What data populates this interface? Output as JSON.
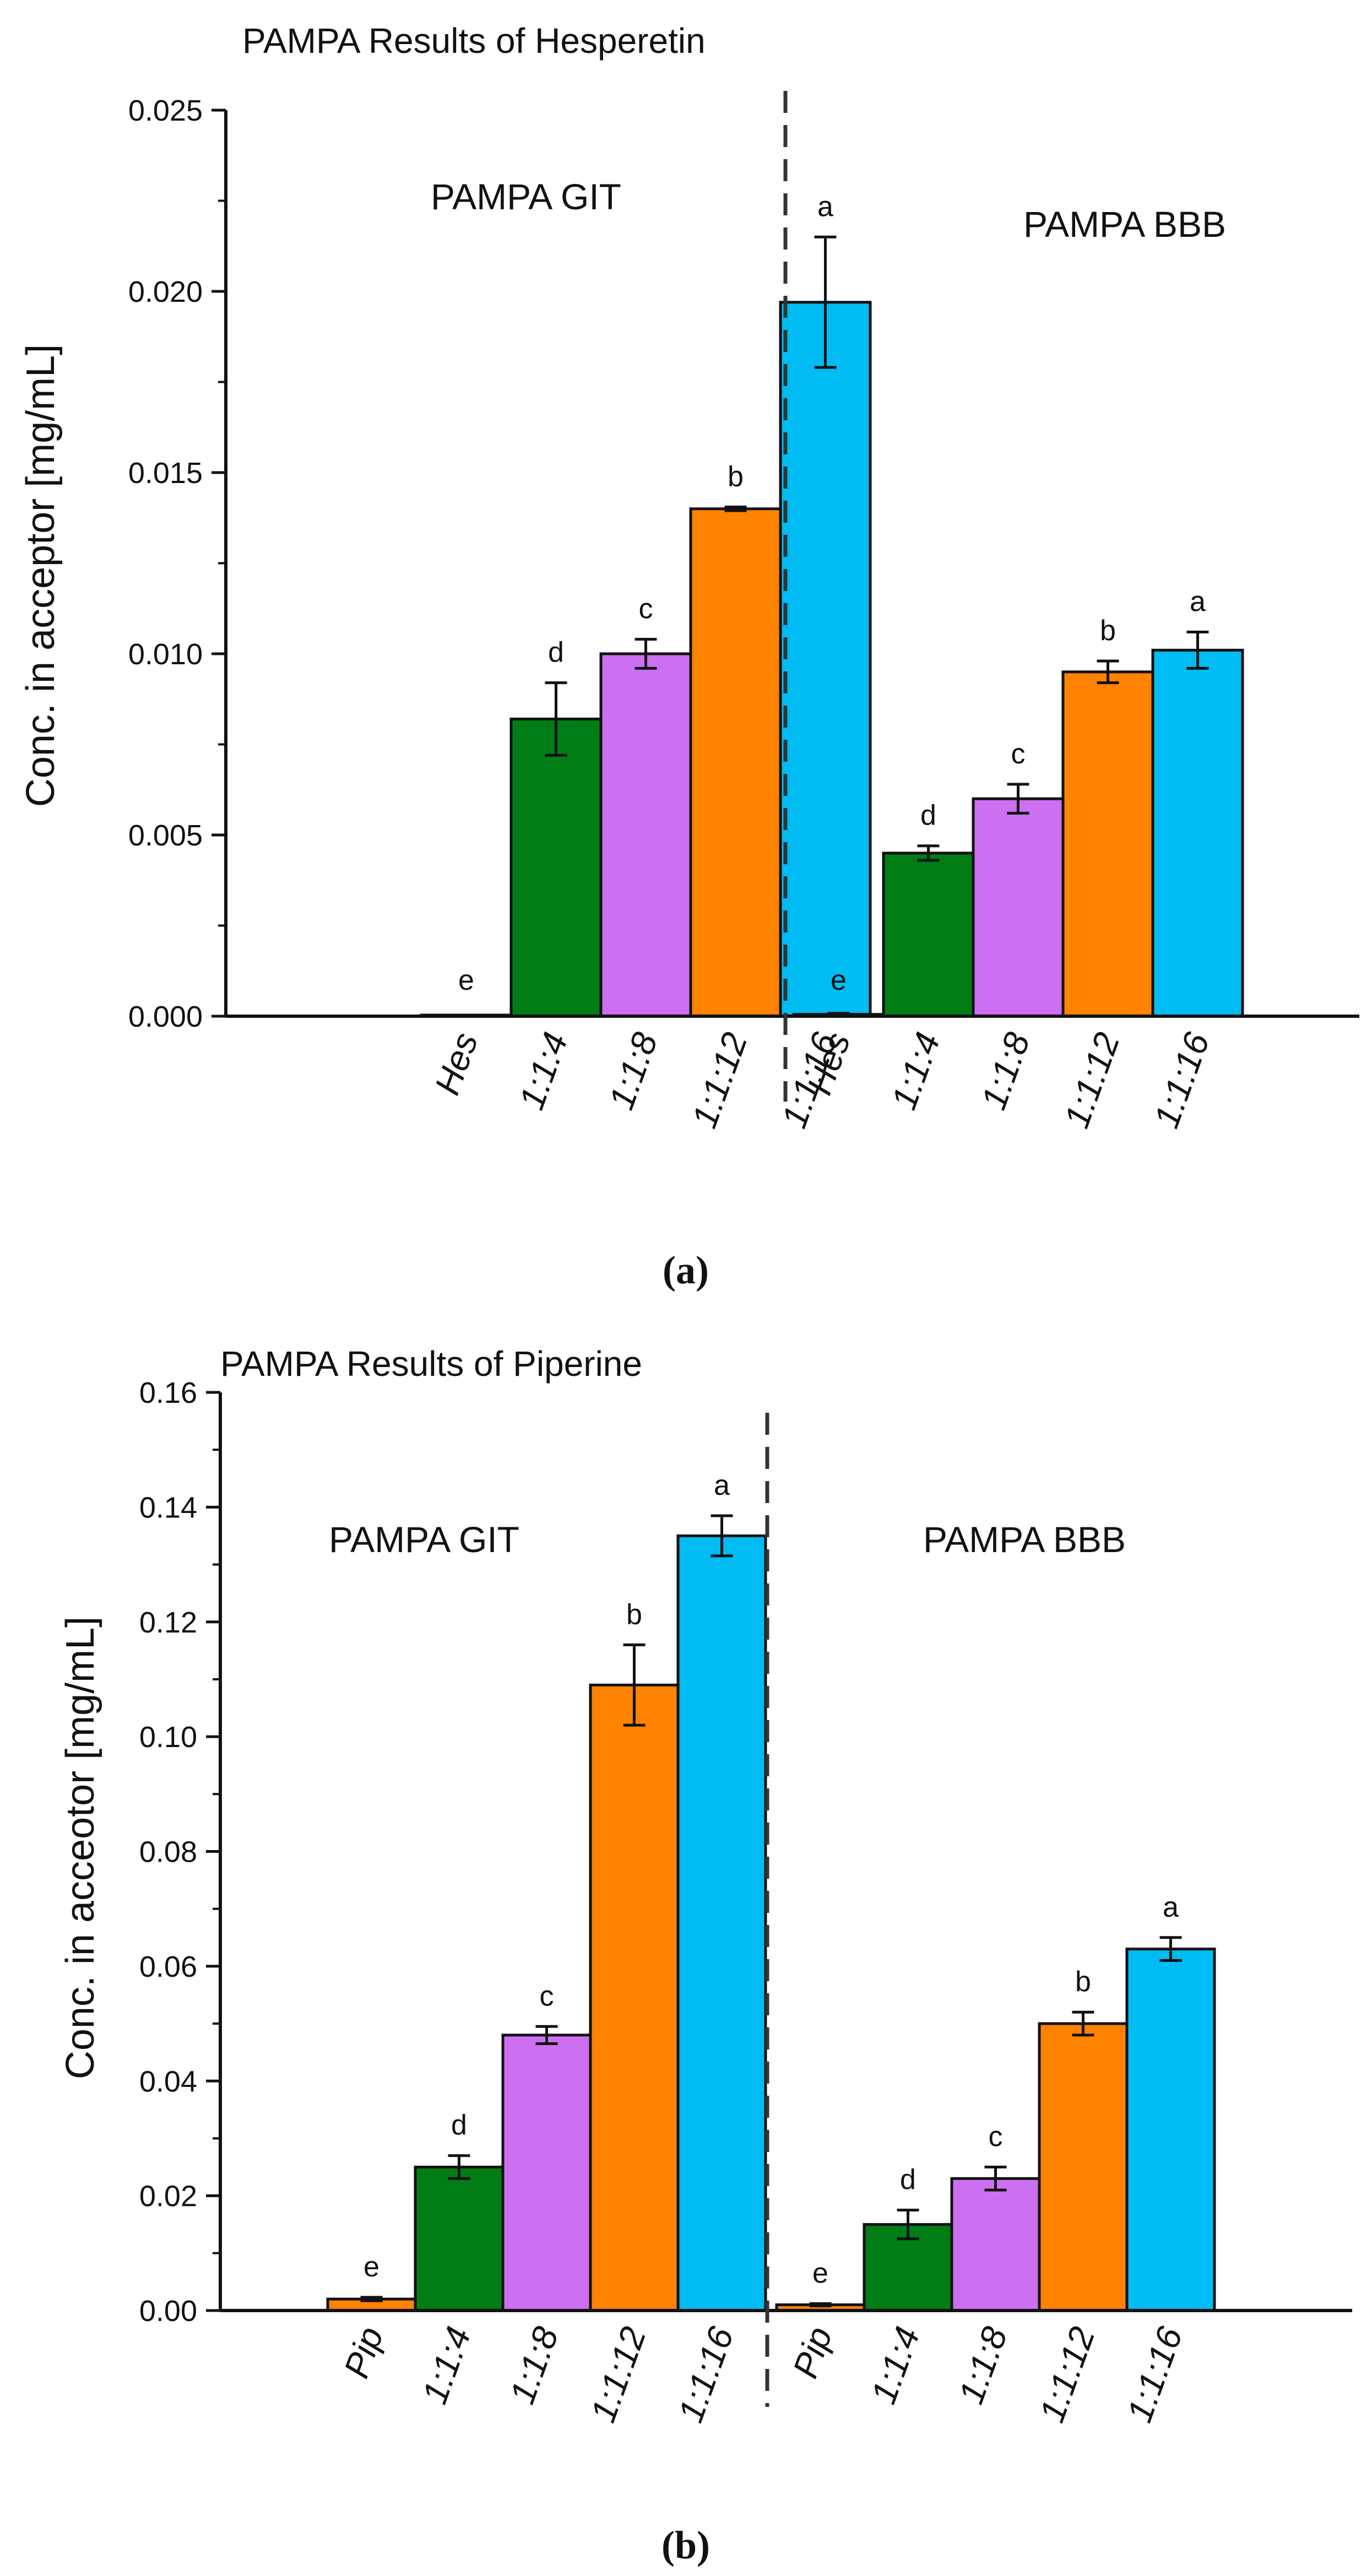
{
  "colors": {
    "hes_pip": "#ff8200",
    "r114": "#007d15",
    "r118": "#cc6ff0",
    "r1112": "#ff8200",
    "r1116": "#00bcf2",
    "edge": "#111111"
  },
  "chart_data": [
    {
      "type": "bar",
      "panel": "a",
      "panel_label": "(a)",
      "title": "PAMPA Results of Hesperetin",
      "xlabel": "",
      "ylabel": "Conc. in acceptor [mg/mL]",
      "ylim": [
        0,
        0.025
      ],
      "yticks": [
        "0.000",
        "0.005",
        "0.010",
        "0.015",
        "0.020",
        "0.025"
      ],
      "ytick_values": [
        0,
        0.005,
        0.01,
        0.015,
        0.02,
        0.025
      ],
      "minor_step": 0.0025,
      "group_labels": [
        "PAMPA GIT",
        "PAMPA BBB"
      ],
      "categories": [
        "Hes",
        "1:1:4",
        "1:1:8",
        "1:1:12",
        "1:1:16",
        "Hes",
        "1:1:4",
        "1:1:8",
        "1:1:12",
        "1:1:16"
      ],
      "values": [
        0.0,
        0.0082,
        0.01,
        0.014,
        0.0197,
        5e-05,
        0.0045,
        0.006,
        0.0095,
        0.0101
      ],
      "errors": [
        0.0,
        0.001,
        0.0004,
        5e-05,
        0.0018,
        3e-05,
        0.0002,
        0.0004,
        0.0003,
        0.0005
      ],
      "letters": [
        "e",
        "d",
        "c",
        "b",
        "a",
        "e",
        "d",
        "c",
        "b",
        "a"
      ],
      "bar_colors": [
        "#ff8200",
        "#007d15",
        "#cc6ff0",
        "#ff8200",
        "#00bcf2",
        "#ff8200",
        "#007d15",
        "#cc6ff0",
        "#ff8200",
        "#00bcf2"
      ]
    },
    {
      "type": "bar",
      "panel": "b",
      "panel_label": "(b)",
      "title": "PAMPA Results of Piperine",
      "xlabel": "",
      "ylabel": "Conc. in acceotor [mg/mL]",
      "ylim": [
        0,
        0.16
      ],
      "yticks": [
        "0.00",
        "0.02",
        "0.04",
        "0.06",
        "0.08",
        "0.10",
        "0.12",
        "0.14",
        "0.16"
      ],
      "ytick_values": [
        0,
        0.02,
        0.04,
        0.06,
        0.08,
        0.1,
        0.12,
        0.14,
        0.16
      ],
      "minor_step": 0.01,
      "group_labels": [
        "PAMPA GIT",
        "PAMPA BBB"
      ],
      "categories": [
        "Pip",
        "1:1:4",
        "1:1:8",
        "1:1:12",
        "1:1:16",
        "Pip",
        "1:1:4",
        "1:1:8",
        "1:1:12",
        "1:1:16"
      ],
      "values": [
        0.002,
        0.025,
        0.048,
        0.109,
        0.135,
        0.001,
        0.015,
        0.023,
        0.05,
        0.063
      ],
      "errors": [
        0.0003,
        0.002,
        0.0015,
        0.007,
        0.0035,
        0.0002,
        0.0025,
        0.002,
        0.002,
        0.002
      ],
      "letters": [
        "e",
        "d",
        "c",
        "b",
        "a",
        "e",
        "d",
        "c",
        "b",
        "a"
      ],
      "bar_colors": [
        "#ff8200",
        "#007d15",
        "#cc6ff0",
        "#ff8200",
        "#00bcf2",
        "#ff8200",
        "#007d15",
        "#cc6ff0",
        "#ff8200",
        "#00bcf2"
      ]
    }
  ]
}
